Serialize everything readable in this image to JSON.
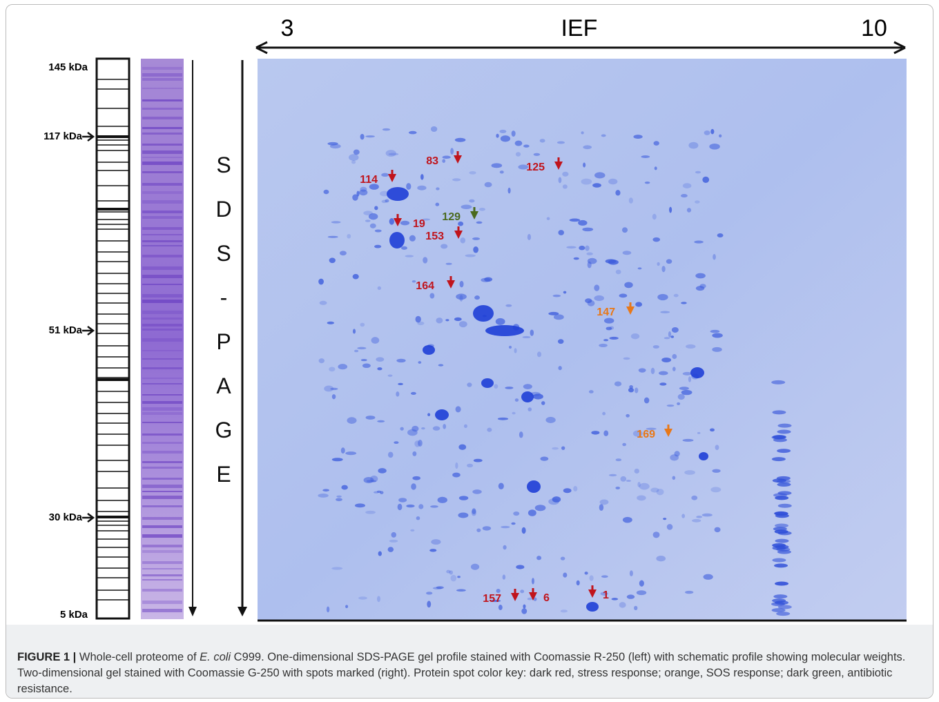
{
  "ief": {
    "low": "3",
    "label": "IEF",
    "high": "10"
  },
  "sds_page_label": "SDS-PAGE",
  "molecular_weights": [
    "145 kDa",
    "117 kDa",
    "51 kDa",
    "30 kDa",
    "5 kDa"
  ],
  "spots": [
    {
      "label": "83",
      "color": "#c0141c"
    },
    {
      "label": "125",
      "color": "#c0141c"
    },
    {
      "label": "114",
      "color": "#c0141c"
    },
    {
      "label": "19",
      "color": "#c0141c"
    },
    {
      "label": "129",
      "color": "#4a6a1e"
    },
    {
      "label": "153",
      "color": "#c0141c"
    },
    {
      "label": "164",
      "color": "#c0141c"
    },
    {
      "label": "147",
      "color": "#e87818"
    },
    {
      "label": "169",
      "color": "#e87818"
    },
    {
      "label": "157",
      "color": "#c0141c"
    },
    {
      "label": "6",
      "color": "#c0141c"
    },
    {
      "label": "1",
      "color": "#c0141c"
    }
  ],
  "caption": {
    "label": "FIGURE 1 | ",
    "text_1": "Whole-cell proteome of ",
    "species": "E. coli",
    "text_2": " C999. One-dimensional SDS-PAGE gel profile stained with Coomassie R-250 (left) with schematic profile showing molecular weights. Two-dimensional gel stained with Coomassie G-250 with spots marked (right). Protein spot color key: dark red, stress response; orange, SOS response; dark green, antibiotic resistance."
  }
}
